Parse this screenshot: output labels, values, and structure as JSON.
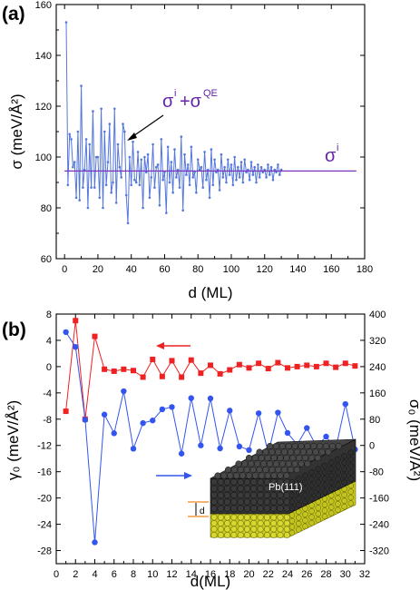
{
  "panel_a": {
    "label": "(a)",
    "annotation_main": "σ",
    "annotation_sup_i": "i",
    "annotation_plus": "+σ",
    "annotation_sup_qe": "QE",
    "flat_label": "σ",
    "flat_sup": "i"
  },
  "panel_b": {
    "label": "(b)",
    "inset_label": "Pb(111)",
    "inset_d": "d"
  },
  "chart_data": [
    {
      "type": "line",
      "xlabel": "d (ML)",
      "ylabel": "σ (meV/Å²)",
      "xlim": [
        -5,
        180
      ],
      "ylim": [
        60,
        160
      ],
      "xticks": [
        "0",
        "20",
        "40",
        "60",
        "80",
        "100",
        "120",
        "140",
        "160",
        "180"
      ],
      "yticks": [
        "60",
        "80",
        "100",
        "120",
        "140",
        "160"
      ],
      "series": [
        {
          "name": "σⁱ+σ^QE",
          "color": "#5577dd",
          "x": [
            1,
            2,
            3,
            4,
            5,
            6,
            7,
            8,
            9,
            10,
            11,
            12,
            13,
            14,
            15,
            16,
            17,
            18,
            19,
            20,
            21,
            22,
            23,
            24,
            25,
            26,
            27,
            28,
            29,
            30,
            31,
            32,
            33,
            34,
            35,
            36,
            37,
            38,
            39,
            40,
            41,
            42,
            43,
            44,
            45,
            46,
            47,
            48,
            49,
            50,
            51,
            52,
            53,
            54,
            55,
            56,
            57,
            58,
            59,
            60,
            61,
            62,
            63,
            64,
            65,
            66,
            67,
            68,
            69,
            70,
            71,
            72,
            73,
            74,
            75,
            76,
            77,
            78,
            79,
            80,
            81,
            82,
            83,
            84,
            85,
            86,
            87,
            88,
            89,
            90,
            91,
            92,
            93,
            94,
            95,
            96,
            97,
            98,
            99,
            100,
            101,
            102,
            103,
            104,
            105,
            106,
            107,
            108,
            109,
            110,
            111,
            112,
            113,
            114,
            115,
            116,
            117,
            118,
            119,
            120,
            121,
            122,
            123,
            124,
            125,
            126,
            127,
            128,
            129,
            130
          ],
          "values": [
            153,
            89,
            109,
            107,
            96,
            98,
            84,
            110,
            83,
            128,
            88,
            95,
            107,
            80,
            105,
            88,
            118,
            88,
            100,
            100,
            84,
            119,
            80,
            110,
            89,
            98,
            113,
            86,
            90,
            119,
            82,
            105,
            96,
            92,
            113,
            110,
            85,
            74,
            100,
            89,
            106,
            91,
            90,
            102,
            89,
            99,
            80,
            100,
            94,
            101,
            84,
            92,
            105,
            88,
            96,
            97,
            81,
            107,
            91,
            94,
            78,
            104,
            90,
            98,
            86,
            103,
            92,
            95,
            88,
            108,
            79,
            101,
            93,
            97,
            89,
            104,
            92,
            94,
            86,
            99,
            95,
            96,
            88,
            102,
            91,
            95,
            84,
            103,
            89,
            99,
            94,
            95,
            87,
            101,
            92,
            96,
            90,
            99,
            93,
            97,
            89,
            100,
            91,
            96,
            92,
            98,
            90,
            99,
            94,
            95,
            91,
            98,
            93,
            96,
            90,
            97,
            92,
            96,
            94,
            95,
            92,
            97,
            93,
            96,
            91,
            95,
            94,
            97,
            93,
            95
          ]
        },
        {
          "name": "σⁱ",
          "color": "#7733bb",
          "x": [
            0,
            175
          ],
          "values": [
            94.5,
            94.5
          ]
        }
      ]
    },
    {
      "type": "line",
      "xlabel": "d(ML)",
      "ylabel": "γ₀ (meV/Å²)",
      "y2label": "σ₀ (meV/Å²)",
      "xlim": [
        0,
        32
      ],
      "ylim": [
        -30,
        8
      ],
      "y2lim": [
        -360,
        400
      ],
      "xticks": [
        "0",
        "2",
        "4",
        "6",
        "8",
        "10",
        "12",
        "14",
        "16",
        "18",
        "20",
        "22",
        "24",
        "26",
        "28",
        "30",
        "32"
      ],
      "yticks": [
        "-28",
        "-24",
        "-20",
        "-16",
        "-12",
        "-8",
        "-4",
        "0",
        "4",
        "8"
      ],
      "y2ticks": [
        "-320",
        "-240",
        "-160",
        "-80",
        "0",
        "80",
        "160",
        "240",
        "320",
        "400"
      ],
      "series": [
        {
          "name": "γ₀",
          "axis": "left",
          "color": "#ee2222",
          "marker": "square",
          "x": [
            1,
            2,
            3,
            4,
            5,
            6,
            7,
            8,
            9,
            10,
            11,
            12,
            13,
            14,
            15,
            16,
            17,
            18,
            19,
            20,
            21,
            22,
            23,
            24,
            25,
            26,
            27,
            28,
            29,
            30,
            31
          ],
          "values": [
            -6.8,
            7.0,
            -8.0,
            4.6,
            -0.4,
            -0.7,
            -0.4,
            -0.6,
            -1.6,
            1.1,
            -1.5,
            0.9,
            -1.6,
            1.0,
            -1.0,
            0.2,
            -1.1,
            -0.5,
            0.3,
            -0.2,
            0.5,
            -0.3,
            0.6,
            -0.2,
            0.0,
            0.2,
            0.0,
            0.5,
            -0.1,
            0.5,
            0.1
          ]
        },
        {
          "name": "σ₀",
          "axis": "right",
          "color": "#3355ee",
          "marker": "circle",
          "x": [
            1,
            2,
            3,
            4,
            5,
            6,
            7,
            8,
            9,
            10,
            11,
            12,
            13,
            14,
            15,
            16,
            17,
            18,
            19,
            20,
            21,
            22,
            23,
            24,
            25,
            26,
            27,
            28,
            29,
            30,
            31
          ],
          "values": [
            345,
            300,
            78,
            -295,
            94,
            37,
            165,
            -10,
            68,
            76,
            110,
            117,
            -25,
            144,
            0,
            143,
            -9,
            106,
            -3,
            -14,
            98,
            -24,
            100,
            38,
            3,
            53,
            -3,
            27,
            -10,
            126,
            -12
          ]
        }
      ]
    }
  ]
}
